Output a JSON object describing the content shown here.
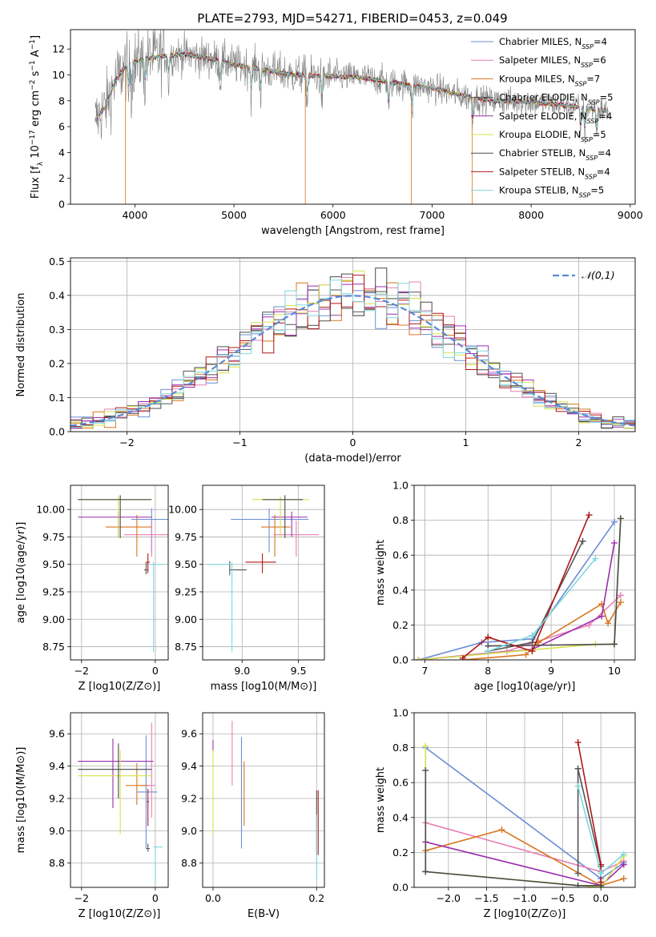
{
  "figure": {
    "title": "PLATE=2793, MJD=54271, FIBERID=0453, z=0.049"
  },
  "models": [
    {
      "name": "Chabrier MILES",
      "nssp": "4",
      "color": "#6b8dd6"
    },
    {
      "name": "Salpeter MILES",
      "nssp": "6",
      "color": "#e87fb3"
    },
    {
      "name": "Kroupa MILES",
      "nssp": "7",
      "color": "#d8761f"
    },
    {
      "name": "Chabrier ELODIE",
      "nssp": "5",
      "color": "#555555"
    },
    {
      "name": "Salpeter ELODIE",
      "nssp": "4",
      "color": "#9b2fae"
    },
    {
      "name": "Kroupa ELODIE",
      "nssp": "5",
      "color": "#d6e24a"
    },
    {
      "name": "Chabrier STELIB",
      "nssp": "4",
      "color": "#4a4a4a"
    },
    {
      "name": "Salpeter STELIB",
      "nssp": "4",
      "color": "#b01818"
    },
    {
      "name": "Kroupa STELIB",
      "nssp": "5",
      "color": "#7fd8dd"
    }
  ],
  "chart_data": [
    {
      "id": "spectrum",
      "type": "line",
      "xlabel": "wavelength [Angstrom, rest frame]",
      "ylabel": "Flux [f_λ 10^-17 erg cm^-2 s^-1 A^-1]",
      "xlim": [
        3350,
        9050
      ],
      "ylim": [
        0,
        13.5
      ],
      "xticks": [
        4000,
        5000,
        6000,
        7000,
        8000,
        9000
      ],
      "yticks": [
        0,
        2,
        4,
        6,
        8,
        10,
        12
      ],
      "data_color": "#808080",
      "data_range": [
        3600,
        8780
      ],
      "continuum": {
        "x": [
          3600,
          3700,
          3800,
          3900,
          4000,
          4200,
          4500,
          4800,
          5000,
          5300,
          5600,
          6000,
          6300,
          6600,
          7000,
          7300,
          7600,
          8000,
          8400,
          8780
        ],
        "y": [
          6.5,
          7.5,
          9.5,
          10.6,
          11.0,
          11.4,
          11.6,
          11.2,
          10.8,
          10.4,
          10.0,
          9.9,
          9.8,
          9.4,
          9.0,
          8.4,
          8.0,
          7.9,
          7.6,
          7.2
        ]
      },
      "absorption_lines": [
        3934,
        3969,
        4102,
        4340,
        4861,
        5175,
        5270,
        5740,
        5890,
        6563,
        6800,
        7410,
        8500,
        8542,
        8662
      ],
      "legend": "top-right",
      "grid": false
    },
    {
      "id": "residual-hist",
      "type": "step",
      "xlabel": "(data-model)/error",
      "ylabel": "Normed distribution",
      "xlim": [
        -2.5,
        2.5
      ],
      "ylim": [
        0,
        0.51
      ],
      "xticks": [
        -2,
        -1,
        0,
        1,
        2
      ],
      "yticks": [
        0.0,
        0.1,
        0.2,
        0.3,
        0.4,
        0.5
      ],
      "bin_width": 0.1,
      "reference": {
        "label": "𝒩(0,1)",
        "color": "#5b8ad6",
        "mean": 0,
        "sigma": 1
      },
      "grid": true,
      "legend": "top-right"
    },
    {
      "id": "age-vs-Z",
      "type": "errorbar",
      "xlabel": "Z [log10(Z/Z⊙)]",
      "ylabel": "age [log10(age/yr)]",
      "xlim": [
        -2.3,
        0.35
      ],
      "ylim": [
        8.63,
        10.22
      ],
      "xticks": [
        -2,
        0
      ],
      "yticks": [
        8.75,
        9.0,
        9.25,
        9.5,
        9.75,
        10.0
      ],
      "points": [
        {
          "m": 0,
          "x": -0.1,
          "y": 9.91,
          "xerr": [
            0.55,
            0.55
          ],
          "yerr": [
            0.3,
            0.1
          ]
        },
        {
          "m": 1,
          "x": -0.1,
          "y": 9.77,
          "xerr": [
            0.75,
            0.75
          ],
          "yerr": [
            0.2,
            0.13
          ]
        },
        {
          "m": 2,
          "x": -0.5,
          "y": 9.84,
          "xerr": [
            0.85,
            0.4
          ],
          "yerr": [
            0.27,
            0.11
          ]
        },
        {
          "m": 3,
          "x": -0.25,
          "y": 9.45,
          "xerr": [
            0.05,
            0.05
          ],
          "yerr": [
            0.04,
            0.07
          ]
        },
        {
          "m": 4,
          "x": -1.0,
          "y": 9.93,
          "xerr": [
            1.1,
            0.9
          ],
          "yerr": [
            0.18,
            0.05
          ]
        },
        {
          "m": 5,
          "x": -1.0,
          "y": 10.09,
          "xerr": [
            1.1,
            0.9
          ],
          "yerr": [
            0.35,
            0.03
          ]
        },
        {
          "m": 6,
          "x": -0.95,
          "y": 10.09,
          "xerr": [
            1.15,
            0.85
          ],
          "yerr": [
            0.35,
            0.04
          ]
        },
        {
          "m": 7,
          "x": -0.2,
          "y": 9.52,
          "xerr": [
            0.05,
            0.05
          ],
          "yerr": [
            0.1,
            0.08
          ]
        },
        {
          "m": 8,
          "x": -0.05,
          "y": 9.5,
          "xerr": [
            0.1,
            0.3
          ],
          "yerr": [
            0.8,
            0.02
          ]
        }
      ],
      "grid": true
    },
    {
      "id": "age-vs-mass",
      "type": "errorbar",
      "xlabel": "mass [log10(M/M⊙)]",
      "ylabel": "",
      "xlim": [
        8.65,
        9.73
      ],
      "ylim": [
        8.63,
        10.22
      ],
      "xticks": [
        9.0,
        9.5
      ],
      "yticks": [
        8.75,
        9.0,
        9.25,
        9.5,
        9.75,
        10.0
      ],
      "points": [
        {
          "m": 0,
          "x": 9.24,
          "y": 9.91,
          "xerr": [
            0.34,
            0.35
          ],
          "yerr": [
            0.3,
            0.1
          ]
        },
        {
          "m": 1,
          "x": 9.48,
          "y": 9.77,
          "xerr": [
            0.2,
            0.2
          ],
          "yerr": [
            0.2,
            0.13
          ]
        },
        {
          "m": 2,
          "x": 9.29,
          "y": 9.84,
          "xerr": [
            0.12,
            0.14
          ],
          "yerr": [
            0.27,
            0.11
          ]
        },
        {
          "m": 3,
          "x": 8.89,
          "y": 9.45,
          "xerr": [
            0.0,
            0.15
          ],
          "yerr": [
            0.05,
            0.08
          ]
        },
        {
          "m": 4,
          "x": 9.44,
          "y": 9.93,
          "xerr": [
            0.18,
            0.14
          ],
          "yerr": [
            0.18,
            0.05
          ]
        },
        {
          "m": 5,
          "x": 9.34,
          "y": 10.09,
          "xerr": [
            0.25,
            0.25
          ],
          "yerr": [
            0.35,
            0.03
          ]
        },
        {
          "m": 6,
          "x": 9.38,
          "y": 10.09,
          "xerr": [
            0.2,
            0.16
          ],
          "yerr": [
            0.35,
            0.04
          ]
        },
        {
          "m": 7,
          "x": 9.18,
          "y": 9.52,
          "xerr": [
            0.15,
            0.12
          ],
          "yerr": [
            0.1,
            0.08
          ]
        },
        {
          "m": 8,
          "x": 8.91,
          "y": 9.5,
          "xerr": [
            0.22,
            0.0
          ],
          "yerr": [
            0.8,
            0.02
          ]
        }
      ],
      "grid": true
    },
    {
      "id": "mass-weight-vs-age",
      "type": "line",
      "xlabel": "age [log10(age/yr)]",
      "ylabel": "mass weight",
      "xlim": [
        6.83,
        10.33
      ],
      "ylim": [
        0,
        1.0
      ],
      "xticks": [
        7,
        8,
        9,
        10
      ],
      "yticks": [
        0.0,
        0.2,
        0.4,
        0.6,
        0.8,
        1.0
      ],
      "series": [
        {
          "m": 0,
          "x": [
            6.9,
            7.9,
            8.7,
            10.0
          ],
          "y": [
            0.0,
            0.1,
            0.12,
            0.79
          ]
        },
        {
          "m": 1,
          "x": [
            6.9,
            8.3,
            9.6,
            10.1
          ],
          "y": [
            0.0,
            0.05,
            0.2,
            0.37
          ]
        },
        {
          "m": 2,
          "x": [
            7.6,
            8.6,
            8.8,
            9.8,
            9.9,
            10.1
          ],
          "y": [
            0.0,
            0.03,
            0.1,
            0.32,
            0.21,
            0.33
          ]
        },
        {
          "m": 3,
          "x": [
            8.0,
            8.7,
            9.5
          ],
          "y": [
            0.05,
            0.1,
            0.68
          ]
        },
        {
          "m": 4,
          "x": [
            6.9,
            8.7,
            9.8,
            10.0
          ],
          "y": [
            0.0,
            0.06,
            0.25,
            0.67
          ]
        },
        {
          "m": 5,
          "x": [
            6.9,
            9.7,
            10.0,
            10.1
          ],
          "y": [
            0.0,
            0.09,
            0.09,
            0.81
          ]
        },
        {
          "m": 6,
          "x": [
            8.0,
            10.0,
            10.1
          ],
          "y": [
            0.08,
            0.09,
            0.81
          ]
        },
        {
          "m": 7,
          "x": [
            7.6,
            8.0,
            8.7,
            9.6
          ],
          "y": [
            0.01,
            0.13,
            0.05,
            0.83
          ]
        },
        {
          "m": 8,
          "x": [
            8.0,
            8.7,
            9.7
          ],
          "y": [
            0.05,
            0.14,
            0.58
          ]
        }
      ],
      "grid": true
    },
    {
      "id": "mass-vs-Z",
      "type": "errorbar",
      "xlabel": "Z [log10(Z/Z⊙)]",
      "ylabel": "mass [log10(M/M⊙)]",
      "xlim": [
        -2.3,
        0.35
      ],
      "ylim": [
        8.65,
        9.73
      ],
      "xticks": [
        -2,
        0
      ],
      "yticks": [
        8.8,
        9.0,
        9.2,
        9.4,
        9.6
      ],
      "points": [
        {
          "m": 0,
          "x": -0.25,
          "y": 9.24,
          "xerr": [
            0.25,
            0.3
          ],
          "yerr": [
            0.35,
            0.35
          ]
        },
        {
          "m": 1,
          "x": -0.1,
          "y": 9.28,
          "xerr": [
            0.3,
            0.1
          ],
          "yerr": [
            0.2,
            0.39
          ]
        },
        {
          "m": 2,
          "x": -0.5,
          "y": 9.28,
          "xerr": [
            0.3,
            0.3
          ],
          "yerr": [
            0.12,
            0.14
          ]
        },
        {
          "m": 3,
          "x": -0.2,
          "y": 8.89,
          "xerr": [
            0.05,
            0.05
          ],
          "yerr": [
            0.02,
            0.03
          ]
        },
        {
          "m": 4,
          "x": -1.15,
          "y": 9.43,
          "xerr": [
            0.95,
            1.1
          ],
          "yerr": [
            0.29,
            0.14
          ]
        },
        {
          "m": 5,
          "x": -0.95,
          "y": 9.34,
          "xerr": [
            1.15,
            0.85
          ],
          "yerr": [
            0.36,
            0.16
          ]
        },
        {
          "m": 6,
          "x": -1.0,
          "y": 9.38,
          "xerr": [
            1.1,
            0.9
          ],
          "yerr": [
            0.18,
            0.16
          ]
        },
        {
          "m": 7,
          "x": -0.2,
          "y": 9.18,
          "xerr": [
            0.03,
            0.03
          ],
          "yerr": [
            0.15,
            0.08
          ]
        },
        {
          "m": 8,
          "x": 0.0,
          "y": 8.9,
          "xerr": [
            0.05,
            0.2
          ],
          "yerr": [
            0.22,
            0.0
          ]
        }
      ],
      "grid": true
    },
    {
      "id": "mass-vs-ebv",
      "type": "errorbar",
      "xlabel": "E(B-V)",
      "ylabel": "",
      "xlim": [
        -0.02,
        0.215
      ],
      "ylim": [
        8.65,
        9.73
      ],
      "xticks": [
        0.0,
        0.2
      ],
      "yticks": [
        8.8,
        9.0,
        9.2,
        9.4,
        9.6
      ],
      "points": [
        {
          "m": 0,
          "x": 0.055,
          "y": 9.24,
          "xerr": [
            0,
            0
          ],
          "yerr": [
            0.35,
            0.34
          ]
        },
        {
          "m": 1,
          "x": 0.037,
          "y": 9.48,
          "xerr": [
            0,
            0
          ],
          "yerr": [
            0.2,
            0.2
          ]
        },
        {
          "m": 2,
          "x": 0.06,
          "y": 9.23,
          "xerr": [
            0,
            0
          ],
          "yerr": [
            0.2,
            0.2
          ]
        },
        {
          "m": 3,
          "x": 0.2,
          "y": 9.05,
          "xerr": [
            0,
            0
          ],
          "yerr": [
            0.2,
            0.2
          ]
        },
        {
          "m": 4,
          "x": 0.0,
          "y": 9.52,
          "xerr": [
            0,
            0
          ],
          "yerr": [
            0.03,
            0.04
          ]
        },
        {
          "m": 5,
          "x": 0.0,
          "y": 9.2,
          "xerr": [
            0,
            0
          ],
          "yerr": [
            0.22,
            0.3
          ]
        },
        {
          "m": 7,
          "x": 0.203,
          "y": 9.05,
          "xerr": [
            0,
            0
          ],
          "yerr": [
            0.2,
            0.2
          ]
        },
        {
          "m": 8,
          "x": 0.2,
          "y": 8.9,
          "xerr": [
            0,
            0
          ],
          "yerr": [
            0.2,
            0.2
          ]
        }
      ],
      "grid": true
    },
    {
      "id": "mass-weight-vs-Z",
      "type": "line",
      "xlabel": "Z [log10(Z/Z⊙)]",
      "ylabel": "mass weight",
      "xlim": [
        -2.45,
        0.45
      ],
      "ylim": [
        0,
        1.0
      ],
      "xticks": [
        -2.0,
        -1.5,
        -1.0,
        -0.5,
        0.0
      ],
      "yticks": [
        0.0,
        0.2,
        0.4,
        0.6,
        0.8,
        1.0
      ],
      "series": [
        {
          "m": 0,
          "x": [
            -2.3,
            0.0,
            0.3
          ],
          "y": [
            0.8,
            0.05,
            0.14
          ]
        },
        {
          "m": 1,
          "x": [
            -2.3,
            0.0,
            0.3
          ],
          "y": [
            0.37,
            0.09,
            0.15
          ]
        },
        {
          "m": 2,
          "x": [
            -2.3,
            -1.3,
            0.0,
            0.3
          ],
          "y": [
            0.21,
            0.33,
            0.01,
            0.05
          ]
        },
        {
          "m": 3,
          "x": [
            -0.3,
            -0.3,
            0.0,
            0.0
          ],
          "y": [
            0.08,
            0.68,
            0.12,
            0.0
          ]
        },
        {
          "m": 4,
          "x": [
            -2.3,
            0.0,
            0.3
          ],
          "y": [
            0.26,
            0.01,
            0.13
          ]
        },
        {
          "m": 5,
          "x": [
            -2.3,
            -2.3,
            0.0,
            0.3
          ],
          "y": [
            0.81,
            0.09,
            0.0,
            0.18
          ]
        },
        {
          "m": 6,
          "x": [
            -2.3,
            -2.3,
            -0.3,
            0.0
          ],
          "y": [
            0.67,
            0.09,
            0.01,
            0.01
          ]
        },
        {
          "m": 7,
          "x": [
            -0.3,
            0.0,
            0.0
          ],
          "y": [
            0.83,
            0.13,
            0.03
          ]
        },
        {
          "m": 8,
          "x": [
            -0.3,
            0.0,
            0.3
          ],
          "y": [
            0.58,
            0.08,
            0.19
          ]
        }
      ],
      "grid": true
    }
  ]
}
